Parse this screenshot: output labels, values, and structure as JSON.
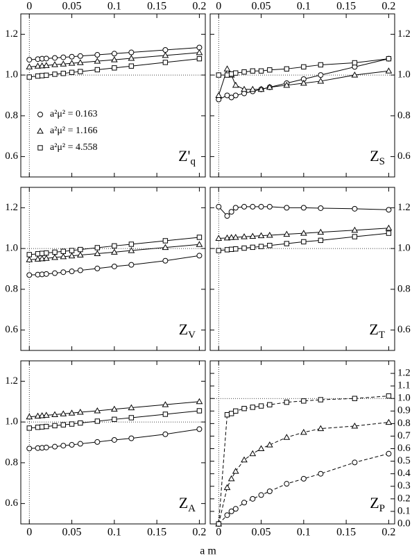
{
  "figure": {
    "xlabel": "a m"
  },
  "chart_data": [
    {
      "type": "line",
      "label": "Z'",
      "label_sub": "q",
      "xtick_labels": "top",
      "ytick_labels": "left",
      "xlim": [
        -0.01,
        0.207
      ],
      "ylim": [
        0.5,
        1.3
      ],
      "xticks": [
        0,
        0.05,
        0.1,
        0.15,
        0.2
      ],
      "yticks": [
        0.6,
        0.8,
        {
          "value": 1,
          "label": "1.0"
        },
        1.2
      ],
      "hline": 1,
      "vline": 0,
      "line_style": "solid",
      "x": [
        0,
        0.01,
        0.015,
        0.02,
        0.03,
        0.04,
        0.05,
        0.06,
        0.08,
        0.1,
        0.12,
        0.16,
        0.2
      ],
      "series": [
        {
          "name": "a²μ² = 0.163",
          "marker": "circle",
          "color": "#000000",
          "values": [
            1.075,
            1.078,
            1.08,
            1.081,
            1.084,
            1.087,
            1.09,
            1.093,
            1.099,
            1.105,
            1.111,
            1.123,
            1.135
          ]
        },
        {
          "name": "a²μ² = 1.166",
          "marker": "triangle",
          "color": "#000000",
          "values": [
            1.04,
            1.044,
            1.045,
            1.047,
            1.051,
            1.054,
            1.058,
            1.061,
            1.068,
            1.075,
            1.082,
            1.096,
            1.11
          ]
        },
        {
          "name": "a²μ² = 4.558",
          "marker": "square",
          "color": "#000000",
          "values": [
            0.99,
            0.995,
            0.997,
            0.999,
            1.004,
            1.008,
            1.013,
            1.017,
            1.026,
            1.035,
            1.044,
            1.062,
            1.08
          ]
        }
      ]
    },
    {
      "type": "line",
      "label": "Z",
      "label_sub": "S",
      "xtick_labels": "top",
      "ytick_labels": "right",
      "xlim": [
        -0.01,
        0.207
      ],
      "ylim": [
        0.5,
        1.3
      ],
      "xticks": [
        0,
        0.05,
        0.1,
        0.15,
        0.2
      ],
      "yticks": [
        0.6,
        0.8,
        {
          "value": 1,
          "label": "1.0"
        },
        1.2
      ],
      "hline": 1,
      "vline": 0,
      "line_style": "solid",
      "x": [
        0,
        0.01,
        0.015,
        0.02,
        0.03,
        0.04,
        0.05,
        0.06,
        0.08,
        0.1,
        0.12,
        0.16,
        0.2
      ],
      "series": [
        {
          "marker": "circle",
          "color": "#000000",
          "values": [
            0.88,
            0.9,
            0.89,
            0.9,
            0.91,
            0.92,
            0.93,
            0.94,
            0.96,
            0.98,
            1.0,
            1.04,
            1.08
          ]
        },
        {
          "marker": "triangle",
          "color": "#000000",
          "values": [
            0.9,
            1.03,
            1.0,
            0.95,
            0.93,
            0.93,
            0.93,
            0.94,
            0.95,
            0.96,
            0.97,
            1.0,
            1.02
          ]
        },
        {
          "marker": "square",
          "color": "#000000",
          "values": [
            1.0,
            1.0,
            1.005,
            1.01,
            1.015,
            1.02,
            1.02,
            1.025,
            1.03,
            1.04,
            1.05,
            1.06,
            1.08
          ]
        }
      ]
    },
    {
      "type": "line",
      "label": "Z",
      "label_sub": "V",
      "ytick_labels": "left",
      "xlim": [
        -0.01,
        0.207
      ],
      "ylim": [
        0.5,
        1.3
      ],
      "xticks": [
        0,
        0.05,
        0.1,
        0.15,
        0.2
      ],
      "yticks": [
        0.6,
        0.8,
        {
          "value": 1,
          "label": "1.0"
        },
        1.2
      ],
      "hline": 1,
      "vline": 0,
      "line_style": "solid",
      "x": [
        0,
        0.01,
        0.015,
        0.02,
        0.03,
        0.04,
        0.05,
        0.06,
        0.08,
        0.1,
        0.12,
        0.16,
        0.2
      ],
      "series": [
        {
          "marker": "circle",
          "color": "#000000",
          "values": [
            0.87,
            0.872,
            0.873,
            0.875,
            0.879,
            0.884,
            0.888,
            0.893,
            0.902,
            0.912,
            0.92,
            0.94,
            0.965
          ]
        },
        {
          "marker": "triangle",
          "color": "#000000",
          "values": [
            0.945,
            0.948,
            0.95,
            0.952,
            0.956,
            0.96,
            0.964,
            0.968,
            0.975,
            0.982,
            0.99,
            1.005,
            1.02
          ]
        },
        {
          "marker": "square",
          "color": "#000000",
          "values": [
            0.97,
            0.974,
            0.976,
            0.978,
            0.982,
            0.986,
            0.99,
            0.995,
            1.004,
            1.013,
            1.021,
            1.038,
            1.055
          ]
        }
      ]
    },
    {
      "type": "line",
      "label": "Z",
      "label_sub": "T",
      "ytick_labels": "right",
      "xlim": [
        -0.01,
        0.207
      ],
      "ylim": [
        0.5,
        1.3
      ],
      "xticks": [
        0,
        0.05,
        0.1,
        0.15,
        0.2
      ],
      "yticks": [
        0.6,
        0.8,
        {
          "value": 1,
          "label": "1.0"
        },
        1.2
      ],
      "hline": 1,
      "vline": 0,
      "line_style": "solid",
      "x": [
        0,
        0.01,
        0.015,
        0.02,
        0.03,
        0.04,
        0.05,
        0.06,
        0.08,
        0.1,
        0.12,
        0.16,
        0.2
      ],
      "series": [
        {
          "marker": "circle",
          "color": "#000000",
          "values": [
            1.205,
            1.16,
            1.18,
            1.2,
            1.205,
            1.205,
            1.205,
            1.205,
            1.2,
            1.2,
            1.198,
            1.195,
            1.19
          ]
        },
        {
          "marker": "triangle",
          "color": "#000000",
          "values": [
            1.05,
            1.052,
            1.054,
            1.055,
            1.058,
            1.06,
            1.063,
            1.065,
            1.07,
            1.075,
            1.08,
            1.09,
            1.1
          ]
        },
        {
          "marker": "square",
          "color": "#000000",
          "values": [
            0.99,
            0.994,
            0.996,
            0.998,
            1.002,
            1.006,
            1.01,
            1.015,
            1.024,
            1.033,
            1.04,
            1.058,
            1.075
          ]
        }
      ]
    },
    {
      "type": "line",
      "label": "Z",
      "label_sub": "A",
      "xtick_labels": "bottom",
      "ytick_labels": "left",
      "xlim": [
        -0.01,
        0.207
      ],
      "ylim": [
        0.5,
        1.3
      ],
      "xticks": [
        0,
        0.05,
        0.1,
        0.15,
        0.2
      ],
      "yticks": [
        0.6,
        0.8,
        {
          "value": 1,
          "label": "1.0"
        },
        1.2
      ],
      "hline": 1,
      "vline": 0,
      "line_style": "solid",
      "x": [
        0,
        0.01,
        0.015,
        0.02,
        0.03,
        0.04,
        0.05,
        0.06,
        0.08,
        0.1,
        0.12,
        0.16,
        0.2
      ],
      "series": [
        {
          "marker": "circle",
          "color": "#000000",
          "values": [
            0.87,
            0.872,
            0.873,
            0.875,
            0.879,
            0.884,
            0.888,
            0.893,
            0.902,
            0.912,
            0.92,
            0.94,
            0.965
          ]
        },
        {
          "marker": "triangle",
          "color": "#000000",
          "values": [
            1.025,
            1.029,
            1.031,
            1.033,
            1.036,
            1.04,
            1.044,
            1.048,
            1.055,
            1.063,
            1.07,
            1.085,
            1.1
          ]
        },
        {
          "marker": "square",
          "color": "#000000",
          "values": [
            0.97,
            0.974,
            0.976,
            0.978,
            0.982,
            0.986,
            0.99,
            0.995,
            1.004,
            1.013,
            1.021,
            1.038,
            1.055
          ]
        }
      ]
    },
    {
      "type": "line",
      "label": "Z",
      "label_sub": "P",
      "xtick_labels": "bottom",
      "ytick_labels": "right",
      "xlim": [
        -0.01,
        0.207
      ],
      "ylim": [
        0,
        1.3
      ],
      "xticks": [
        0,
        0.05,
        0.1,
        0.15,
        0.2
      ],
      "yticks": [
        {
          "value": 0,
          "label": "0.0"
        },
        0.1,
        0.2,
        0.3,
        0.4,
        0.5,
        0.6,
        0.7,
        0.8,
        0.9,
        {
          "value": 1,
          "label": "1.0"
        },
        1.1,
        1.2
      ],
      "hline": 1,
      "vline": 0,
      "line_style": "dashed",
      "x": [
        0,
        0.01,
        0.015,
        0.02,
        0.03,
        0.04,
        0.05,
        0.06,
        0.08,
        0.1,
        0.12,
        0.16,
        0.2
      ],
      "series": [
        {
          "marker": "circle",
          "color": "#000000",
          "values": [
            0,
            0.07,
            0.1,
            0.12,
            0.17,
            0.2,
            0.23,
            0.26,
            0.32,
            0.36,
            0.4,
            0.49,
            0.56
          ]
        },
        {
          "marker": "triangle",
          "color": "#000000",
          "values": [
            0,
            0.29,
            0.36,
            0.42,
            0.51,
            0.56,
            0.6,
            0.63,
            0.69,
            0.73,
            0.76,
            0.78,
            0.81
          ]
        },
        {
          "marker": "square",
          "color": "#000000",
          "values": [
            0,
            0.87,
            0.88,
            0.9,
            0.92,
            0.93,
            0.94,
            0.95,
            0.97,
            0.98,
            0.99,
            1.0,
            1.02
          ]
        }
      ]
    }
  ]
}
